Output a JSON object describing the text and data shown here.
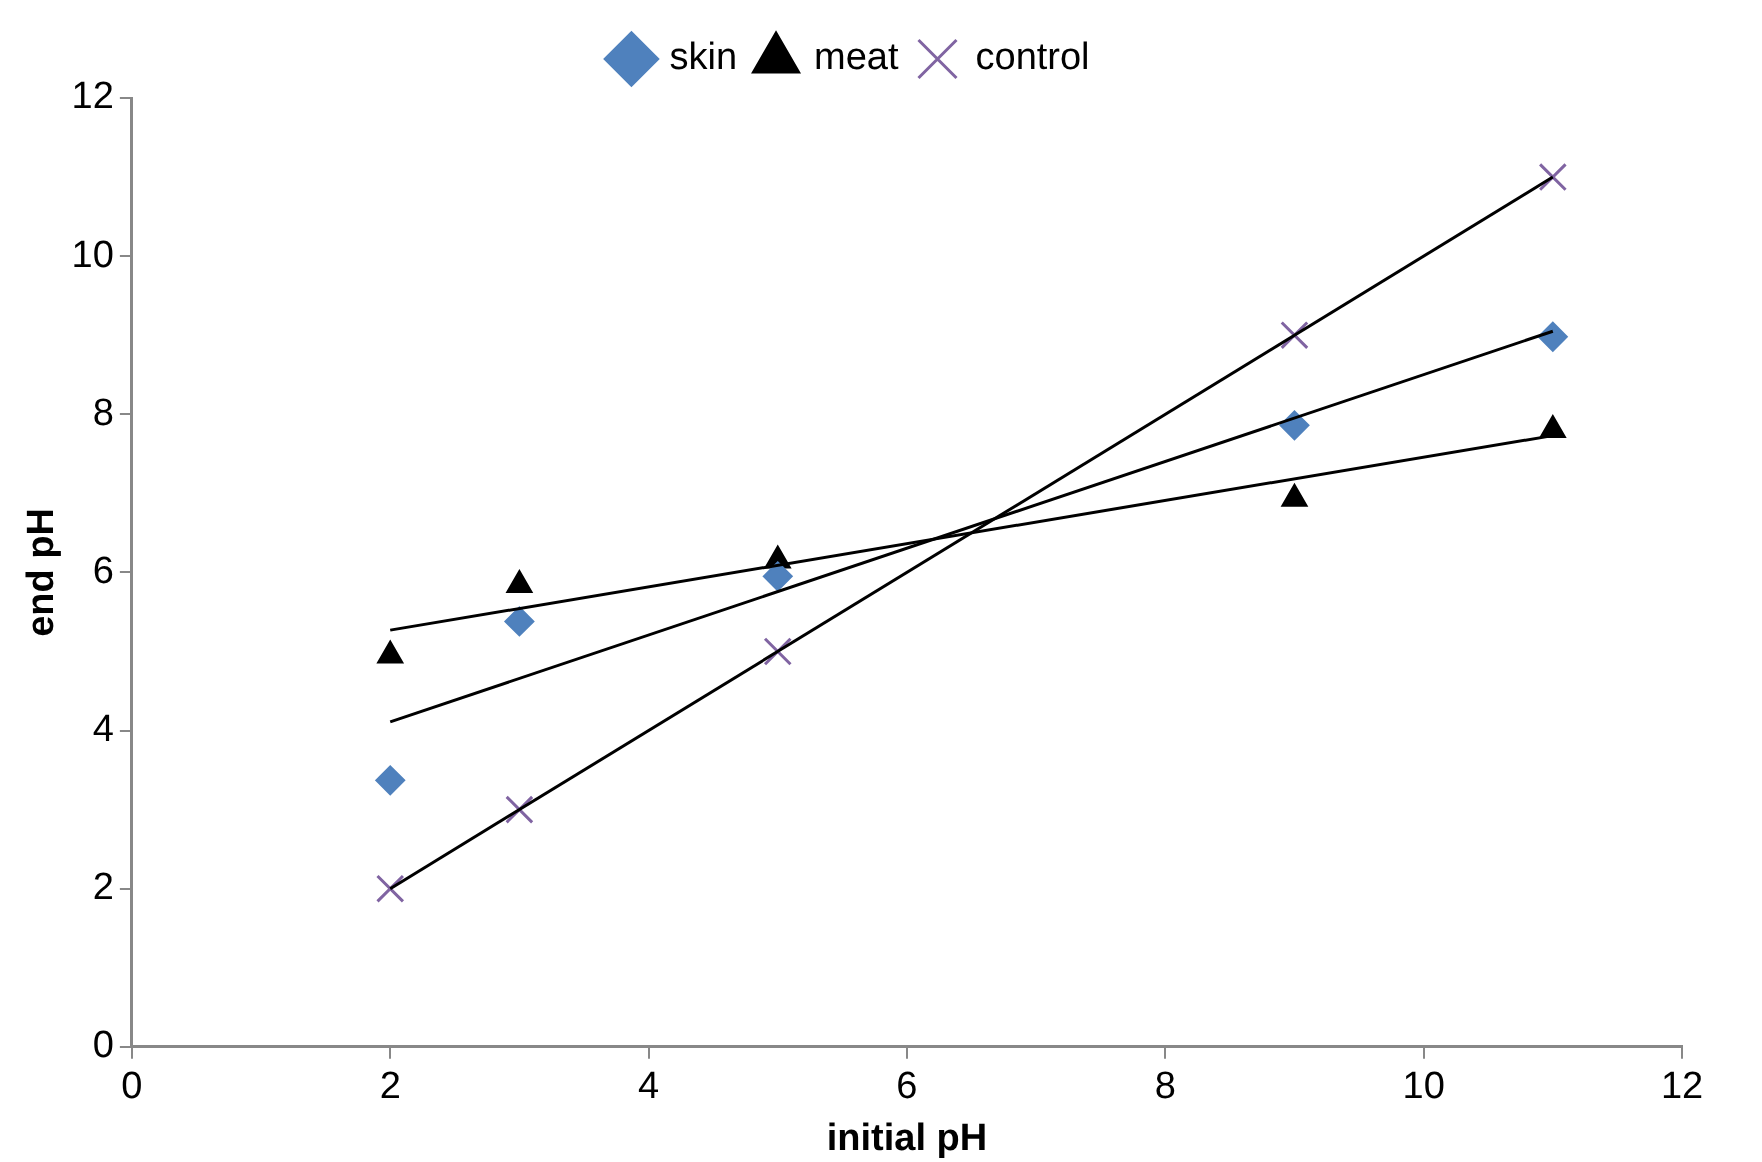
{
  "chart_data": {
    "type": "scatter",
    "xlabel": "initial pH",
    "ylabel": "end pH",
    "xlim": [
      0,
      12
    ],
    "xticks": [
      0,
      2,
      4,
      6,
      8,
      10,
      12
    ],
    "ylim": [
      0,
      12
    ],
    "yticks": [
      0,
      2,
      4,
      6,
      8,
      10,
      12
    ],
    "grid": false,
    "legend": "top",
    "series": [
      {
        "name": "skin",
        "color": "#4f81bd",
        "marker": "diamond",
        "x": [
          2,
          3,
          5,
          9,
          11
        ],
        "values": [
          3.37,
          5.38,
          5.95,
          7.86,
          8.98
        ]
      },
      {
        "name": "meat",
        "color": "#000000",
        "marker": "triangle",
        "x": [
          2,
          3,
          5,
          9,
          11
        ],
        "values": [
          4.95,
          5.84,
          6.15,
          6.93,
          7.8
        ]
      },
      {
        "name": "control",
        "color": "#8064a2",
        "marker": "cross",
        "x": [
          2,
          3,
          5,
          9,
          11
        ],
        "values": [
          2,
          3,
          5,
          9,
          11
        ]
      },
      {
        "type": "line",
        "color": "#000000",
        "marker": "none",
        "x": [
          2,
          11
        ],
        "values": [
          4.11,
          9.05
        ]
      },
      {
        "type": "line",
        "color": "#000000",
        "marker": "none",
        "x": [
          2,
          11
        ],
        "values": [
          5.27,
          7.73
        ]
      },
      {
        "type": "line",
        "color": "#000000",
        "marker": "none",
        "x": [
          2,
          11
        ],
        "values": [
          2,
          11
        ]
      }
    ]
  }
}
